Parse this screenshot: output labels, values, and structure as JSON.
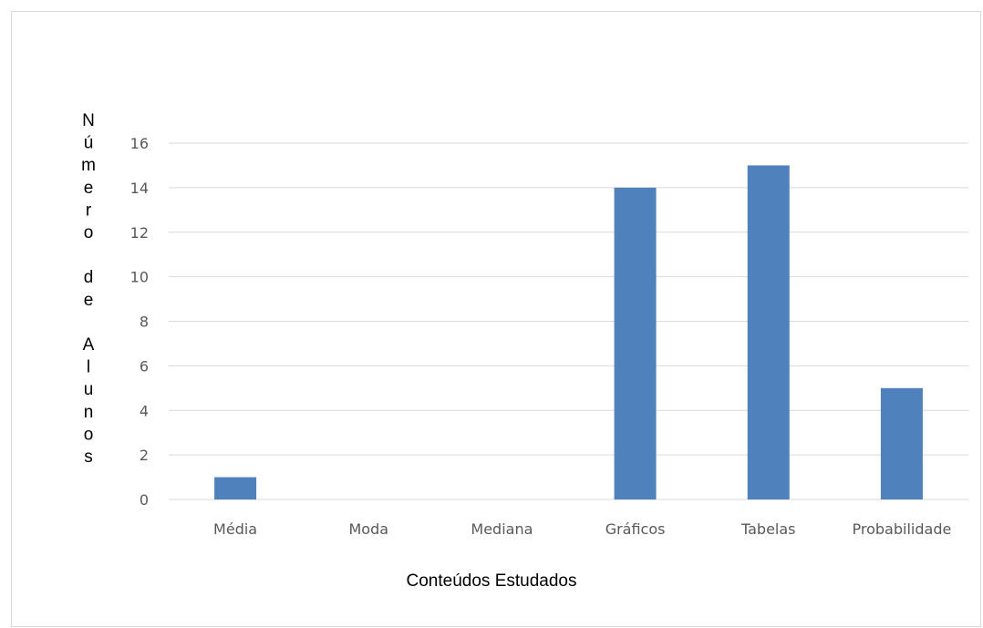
{
  "chart_data": {
    "type": "bar",
    "categories": [
      "Média",
      "Moda",
      "Mediana",
      "Gráficos",
      "Tabelas",
      "Probabilidade"
    ],
    "values": [
      1,
      0,
      0,
      14,
      15,
      5
    ],
    "title": "",
    "xlabel": "Conteúdos Estudados",
    "ylabel": "Número de Alunos",
    "ylabel_lines": [
      "N",
      "ú",
      "m",
      "e",
      "r",
      "o",
      "",
      "d",
      "e",
      "",
      "A",
      "l",
      "u",
      "n",
      "o",
      "s"
    ],
    "ylim": [
      0,
      16
    ],
    "yticks": [
      0,
      2,
      4,
      6,
      8,
      10,
      12,
      14,
      16
    ],
    "grid": true,
    "legend": "none",
    "bar_color": "#4f81bd"
  }
}
